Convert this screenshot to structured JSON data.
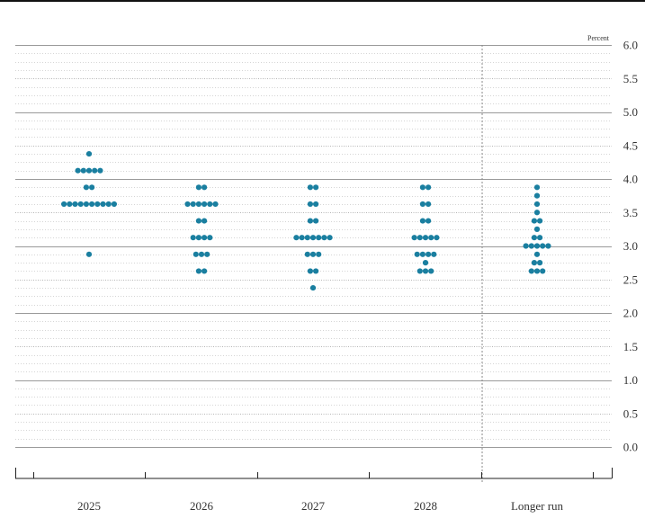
{
  "chart_data": {
    "type": "scatter",
    "unit_label": "Percent",
    "categories": [
      "2025",
      "2026",
      "2027",
      "2028",
      "Longer run"
    ],
    "ylim": [
      0.0,
      6.0
    ],
    "y_ticks": [
      "0.0",
      "0.5",
      "1.0",
      "1.5",
      "2.0",
      "2.5",
      "3.0",
      "3.5",
      "4.0",
      "4.5",
      "5.0",
      "5.5",
      "6.0"
    ],
    "grid": true,
    "dot_color": "#1a7fa0",
    "points": [
      {
        "x": "2025",
        "y": 4.375,
        "count": 1
      },
      {
        "x": "2025",
        "y": 4.125,
        "count": 5
      },
      {
        "x": "2025",
        "y": 3.875,
        "count": 2
      },
      {
        "x": "2025",
        "y": 3.625,
        "count": 10
      },
      {
        "x": "2025",
        "y": 2.875,
        "count": 1
      },
      {
        "x": "2026",
        "y": 3.875,
        "count": 2
      },
      {
        "x": "2026",
        "y": 3.625,
        "count": 6
      },
      {
        "x": "2026",
        "y": 3.375,
        "count": 2
      },
      {
        "x": "2026",
        "y": 3.125,
        "count": 4
      },
      {
        "x": "2026",
        "y": 2.875,
        "count": 3
      },
      {
        "x": "2026",
        "y": 2.625,
        "count": 2
      },
      {
        "x": "2027",
        "y": 3.875,
        "count": 2
      },
      {
        "x": "2027",
        "y": 3.625,
        "count": 2
      },
      {
        "x": "2027",
        "y": 3.375,
        "count": 2
      },
      {
        "x": "2027",
        "y": 3.125,
        "count": 7
      },
      {
        "x": "2027",
        "y": 2.875,
        "count": 3
      },
      {
        "x": "2027",
        "y": 2.625,
        "count": 2
      },
      {
        "x": "2027",
        "y": 2.375,
        "count": 1
      },
      {
        "x": "2028",
        "y": 3.875,
        "count": 2
      },
      {
        "x": "2028",
        "y": 3.625,
        "count": 2
      },
      {
        "x": "2028",
        "y": 3.375,
        "count": 2
      },
      {
        "x": "2028",
        "y": 3.125,
        "count": 5
      },
      {
        "x": "2028",
        "y": 2.875,
        "count": 4
      },
      {
        "x": "2028",
        "y": 2.75,
        "count": 1
      },
      {
        "x": "2028",
        "y": 2.625,
        "count": 3
      },
      {
        "x": "Longer run",
        "y": 3.875,
        "count": 1
      },
      {
        "x": "Longer run",
        "y": 3.75,
        "count": 1
      },
      {
        "x": "Longer run",
        "y": 3.625,
        "count": 1
      },
      {
        "x": "Longer run",
        "y": 3.5,
        "count": 1
      },
      {
        "x": "Longer run",
        "y": 3.375,
        "count": 2
      },
      {
        "x": "Longer run",
        "y": 3.25,
        "count": 1
      },
      {
        "x": "Longer run",
        "y": 3.125,
        "count": 2
      },
      {
        "x": "Longer run",
        "y": 3.0,
        "count": 5
      },
      {
        "x": "Longer run",
        "y": 2.875,
        "count": 1
      },
      {
        "x": "Longer run",
        "y": 2.75,
        "count": 2
      },
      {
        "x": "Longer run",
        "y": 2.625,
        "count": 3
      }
    ]
  }
}
